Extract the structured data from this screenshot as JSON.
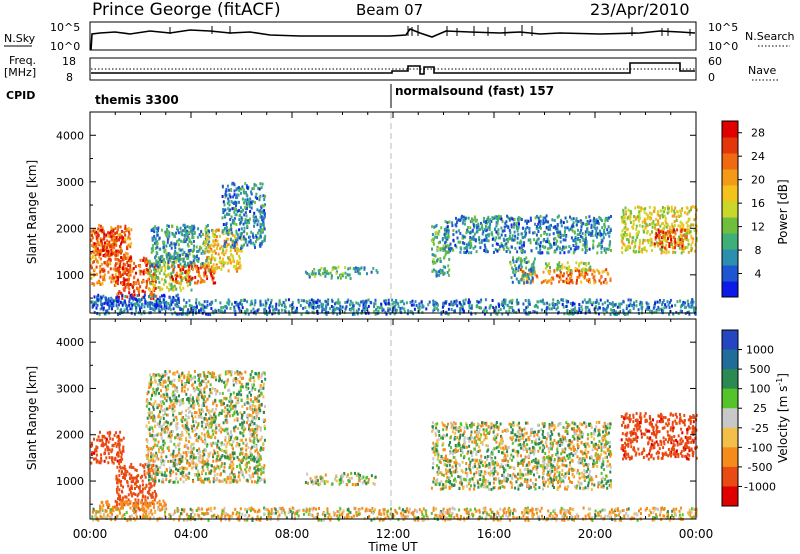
{
  "header": {
    "station": "Prince George (fitACF)",
    "beam": "Beam 07",
    "date": "23/Apr/2010"
  },
  "top_panels": {
    "nsky_label": "N.Sky",
    "nsky_ticks": [
      "10^5",
      "10^0"
    ],
    "nsearch_label": "N.Search",
    "nsearch_ticks": [
      "10^5",
      "10^0"
    ],
    "freq_label_1": "Freq.",
    "freq_label_2": "[MHz]",
    "freq_ticks": [
      "18",
      "8"
    ],
    "nave_label": "Nave",
    "nave_ticks": [
      "60",
      "0"
    ],
    "cpid_label": "CPID",
    "cpid_modes": [
      {
        "name": "themis 3300",
        "start_hour": 0
      },
      {
        "name": "normalsound (fast) 157",
        "start_hour": 12
      }
    ]
  },
  "chart_data": [
    {
      "type": "heatmap",
      "parameter": "Power",
      "xlabel": "",
      "ylabel": "Slant Range [km]",
      "xlim": [
        0,
        24
      ],
      "ylim": [
        180,
        4500
      ],
      "yticks": [
        "1000",
        "2000",
        "3000",
        "4000"
      ],
      "colorbar": {
        "label": "Power [dB]",
        "tick_labels": [
          "4",
          "8",
          "12",
          "16",
          "20",
          "24",
          "28"
        ],
        "range": [
          0,
          30
        ],
        "colors": [
          "#0c1be8",
          "#1e55d0",
          "#2d8fb0",
          "#3fae78",
          "#6fbf3d",
          "#c9d72a",
          "#f4c21c",
          "#f59a17",
          "#f06a12",
          "#e4360b",
          "#e00000"
        ]
      },
      "echo_regions": [
        {
          "t0": 0.0,
          "t1": 1.6,
          "r0": 800,
          "r1": 2100,
          "dB": 22
        },
        {
          "t0": 0.0,
          "t1": 1.3,
          "r0": 1400,
          "r1": 2000,
          "dB": 27
        },
        {
          "t0": 1.0,
          "t1": 2.6,
          "r0": 500,
          "r1": 1400,
          "dB": 25
        },
        {
          "t0": 2.3,
          "t1": 4.0,
          "r0": 700,
          "r1": 1500,
          "dB": 14
        },
        {
          "t0": 2.4,
          "t1": 4.8,
          "r0": 1200,
          "r1": 2100,
          "dB": 8
        },
        {
          "t0": 3.2,
          "t1": 5.0,
          "r0": 850,
          "r1": 1250,
          "dB": 24
        },
        {
          "t0": 4.5,
          "t1": 6.0,
          "r0": 1100,
          "r1": 2000,
          "dB": 18
        },
        {
          "t0": 5.2,
          "t1": 6.9,
          "r0": 1600,
          "r1": 3000,
          "dB": 7
        },
        {
          "t0": 8.5,
          "t1": 10.3,
          "r0": 950,
          "r1": 1200,
          "dB": 10
        },
        {
          "t0": 10.4,
          "t1": 11.4,
          "r0": 1050,
          "r1": 1200,
          "dB": 6
        },
        {
          "t0": 13.5,
          "t1": 14.2,
          "r0": 1000,
          "r1": 2100,
          "dB": 10
        },
        {
          "t0": 14.0,
          "t1": 20.6,
          "r0": 1500,
          "r1": 2300,
          "dB": 7
        },
        {
          "t0": 17.0,
          "t1": 20.6,
          "r0": 850,
          "r1": 1150,
          "dB": 22
        },
        {
          "t0": 16.6,
          "t1": 17.6,
          "r0": 850,
          "r1": 1400,
          "dB": 9
        },
        {
          "t0": 18.0,
          "t1": 19.8,
          "r0": 1100,
          "r1": 1300,
          "dB": 14
        },
        {
          "t0": 21.0,
          "t1": 24.0,
          "r0": 1500,
          "r1": 2500,
          "dB": 16
        },
        {
          "t0": 22.3,
          "t1": 23.6,
          "r0": 1600,
          "r1": 2000,
          "dB": 25
        },
        {
          "t0": 0.0,
          "t1": 24.0,
          "r0": 180,
          "r1": 500,
          "dB": 6
        },
        {
          "t0": 0.0,
          "t1": 3.5,
          "r0": 300,
          "r1": 600,
          "dB": 4
        }
      ]
    },
    {
      "type": "heatmap",
      "parameter": "Velocity",
      "xlabel": "Time UT",
      "ylabel": "Slant Range [km]",
      "xlim": [
        0,
        24
      ],
      "ylim": [
        180,
        4500
      ],
      "xticks": [
        "00:00",
        "04:00",
        "08:00",
        "12:00",
        "16:00",
        "20:00",
        "00:00"
      ],
      "yticks": [
        "1000",
        "2000",
        "3000",
        "4000"
      ],
      "colorbar": {
        "label": "Velocity [m s",
        "label_exponent": "-1",
        "label_close": "]",
        "tick_labels": [
          "1000",
          "500",
          "100",
          "25",
          "-25",
          "-100",
          "-500",
          "-1000"
        ],
        "colors": [
          "#2446c0",
          "#1f6d98",
          "#2b8a52",
          "#55c42b",
          "#c8c8c8",
          "#f2c04a",
          "#f58b1a",
          "#ea4b12",
          "#e00000"
        ]
      },
      "echo_regions": [
        {
          "t0": 0.0,
          "t1": 1.3,
          "r0": 1400,
          "r1": 2100,
          "v": -600
        },
        {
          "t0": 1.0,
          "t1": 2.6,
          "r0": 500,
          "r1": 1400,
          "v": -500
        },
        {
          "t0": 2.2,
          "t1": 6.9,
          "r0": 1000,
          "r1": 3400,
          "v": 0
        },
        {
          "t0": 0.3,
          "t1": 3.0,
          "r0": 350,
          "r1": 600,
          "v": -200
        },
        {
          "t0": 8.5,
          "t1": 11.3,
          "r0": 950,
          "r1": 1200,
          "v": 0
        },
        {
          "t0": 13.5,
          "t1": 20.6,
          "r0": 850,
          "r1": 2300,
          "v": 0
        },
        {
          "t0": 21.0,
          "t1": 24.0,
          "r0": 1500,
          "r1": 2500,
          "v": -600
        },
        {
          "t0": 0.0,
          "t1": 24.0,
          "r0": 180,
          "r1": 450,
          "v": -50
        }
      ]
    }
  ]
}
